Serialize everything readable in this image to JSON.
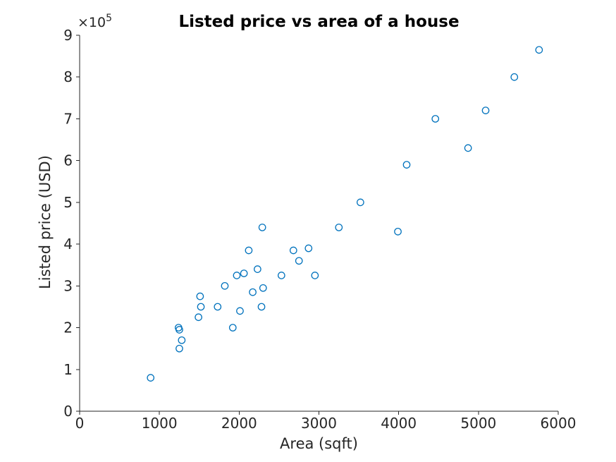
{
  "chart": {
    "title": "Listed price vs area of a house",
    "xlabel": "Area (sqft)",
    "ylabel": "Listed price (USD)",
    "offset": {
      "base": "×10",
      "exponent": "5"
    }
  },
  "chart_data": {
    "type": "scatter",
    "title": "Listed price vs area of a house",
    "xlabel": "Area (sqft)",
    "ylabel": "Listed price (USD)",
    "y_offset_label": "×10⁵",
    "xlim": [
      0,
      6000
    ],
    "ylim": [
      0,
      900000
    ],
    "x_ticks": [
      0,
      1000,
      2000,
      3000,
      4000,
      5000,
      6000
    ],
    "x_tick_labels": [
      "0",
      "1000",
      "2000",
      "3000",
      "4000",
      "5000",
      "6000"
    ],
    "y_ticks": [
      0,
      100000,
      200000,
      300000,
      400000,
      500000,
      600000,
      700000,
      800000,
      900000
    ],
    "y_tick_labels": [
      "0",
      "1",
      "2",
      "3",
      "4",
      "5",
      "6",
      "7",
      "8",
      "9"
    ],
    "grid": false,
    "legend": null,
    "marker": "open-circle",
    "marker_color": "#0072BD",
    "axis_color": "#262626",
    "points": [
      [
        890,
        80000
      ],
      [
        1240,
        200000
      ],
      [
        1250,
        195000
      ],
      [
        1250,
        150000
      ],
      [
        1280,
        170000
      ],
      [
        1490,
        225000
      ],
      [
        1510,
        275000
      ],
      [
        1520,
        250000
      ],
      [
        1730,
        250000
      ],
      [
        1820,
        300000
      ],
      [
        1920,
        200000
      ],
      [
        1970,
        325000
      ],
      [
        2010,
        240000
      ],
      [
        2060,
        330000
      ],
      [
        2120,
        385000
      ],
      [
        2170,
        285000
      ],
      [
        2230,
        340000
      ],
      [
        2280,
        250000
      ],
      [
        2290,
        440000
      ],
      [
        2300,
        295000
      ],
      [
        2530,
        325000
      ],
      [
        2680,
        385000
      ],
      [
        2750,
        360000
      ],
      [
        2870,
        390000
      ],
      [
        2950,
        325000
      ],
      [
        3250,
        440000
      ],
      [
        3520,
        500000
      ],
      [
        3990,
        430000
      ],
      [
        4100,
        590000
      ],
      [
        4460,
        700000
      ],
      [
        4870,
        630000
      ],
      [
        5090,
        720000
      ],
      [
        5450,
        800000
      ],
      [
        5760,
        865000
      ]
    ]
  }
}
